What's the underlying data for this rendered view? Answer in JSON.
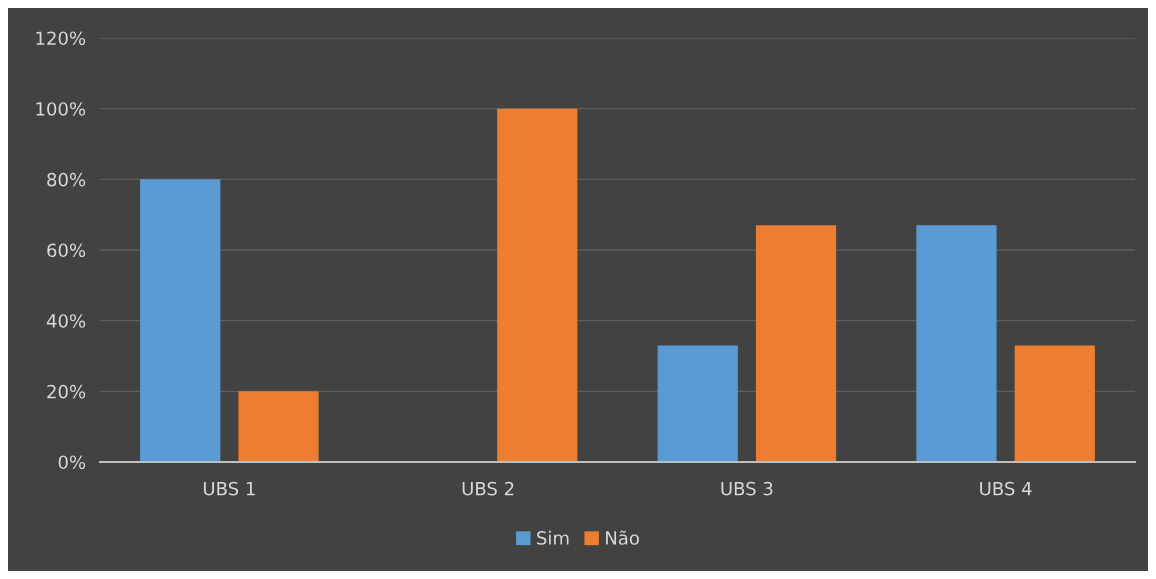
{
  "chart_data": {
    "type": "bar",
    "categories": [
      "UBS 1",
      "UBS 2",
      "UBS 3",
      "UBS 4"
    ],
    "series": [
      {
        "name": "Sim",
        "color": "#5b9bd5",
        "values": [
          80,
          0,
          33,
          67
        ]
      },
      {
        "name": "Não",
        "color": "#ed7d31",
        "values": [
          20,
          100,
          67,
          33
        ]
      }
    ],
    "ylim": [
      0,
      120
    ],
    "yticks": [
      {
        "value": 0,
        "label": "0%"
      },
      {
        "value": 20,
        "label": "20%"
      },
      {
        "value": 40,
        "label": "40%"
      },
      {
        "value": 60,
        "label": "60%"
      },
      {
        "value": 80,
        "label": "80%"
      },
      {
        "value": 100,
        "label": "100%"
      },
      {
        "value": 120,
        "label": "120%"
      }
    ],
    "grid": "y",
    "legend": "bottom"
  }
}
